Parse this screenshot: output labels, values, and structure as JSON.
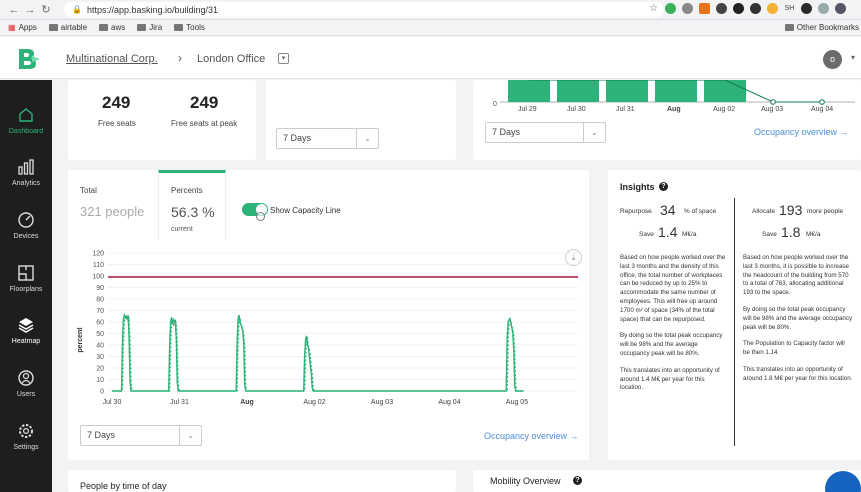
{
  "browser": {
    "url": "https://app.basking.io/building/31",
    "bookmarks": [
      "Apps",
      "airtable",
      "aws",
      "Jira",
      "Tools"
    ],
    "other_bookmarks": "Other Bookmarks",
    "ext_sh": "SH"
  },
  "header": {
    "org": "Multinational Corp.",
    "location": "London Office",
    "avatar_initial": "o"
  },
  "sidebar": {
    "items": [
      {
        "label": "Dashboard",
        "icon": "home-icon"
      },
      {
        "label": "Analytics",
        "icon": "bar-chart-icon"
      },
      {
        "label": "Devices",
        "icon": "device-icon"
      },
      {
        "label": "Floorplans",
        "icon": "floorplan-icon"
      },
      {
        "label": "Heatmap",
        "icon": "layers-icon"
      },
      {
        "label": "Users",
        "icon": "users-icon"
      },
      {
        "label": "Settings",
        "icon": "gear-icon"
      }
    ]
  },
  "seats": {
    "free_seats_value": "249",
    "free_seats_label": "Free seats",
    "free_peak_value": "249",
    "free_peak_label": "Free seats at peak"
  },
  "mid_card": {
    "period": "7 Days"
  },
  "occupancy_top": {
    "period": "7 Days",
    "link": "Occupancy overview →",
    "y_tick": "0",
    "dates": [
      "Jul 29",
      "Jul 30",
      "Jul 31",
      "Aug",
      "Aug 02",
      "Aug 03",
      "Aug 04"
    ]
  },
  "main_chart_card": {
    "total_label": "Total",
    "total_value": "321 people",
    "percents_label": "Percents",
    "percent_value": "56.3 %",
    "percent_sub": "current",
    "toggle_label": "Show Capacity Line",
    "period": "7 Days",
    "link": "Occupancy overview →"
  },
  "chart_data": {
    "type": "line",
    "ylabel": "percent",
    "ylim": [
      0,
      120
    ],
    "yticks": [
      0,
      10,
      20,
      30,
      40,
      50,
      60,
      70,
      80,
      90,
      100,
      110,
      120
    ],
    "x_labels": [
      "Jul 30",
      "Jul 31",
      "Aug",
      "Aug 02",
      "Aug 03",
      "Aug 04",
      "Aug 05"
    ],
    "capacity_line": 100,
    "series": [
      {
        "style": "solid",
        "color": "#2db37a",
        "values": [
          0,
          0,
          0,
          0,
          0,
          0,
          0,
          0,
          0,
          0,
          0,
          0,
          0,
          0,
          0,
          0,
          0,
          0,
          0,
          0,
          0,
          0,
          0,
          0,
          0,
          0,
          0,
          0,
          0,
          0,
          0,
          0,
          0,
          0,
          0,
          0,
          0,
          0,
          0,
          0,
          0,
          0,
          0,
          0,
          0,
          0,
          0,
          0,
          0,
          0,
          0,
          0,
          0,
          0,
          0,
          0,
          0,
          0,
          0,
          0,
          0,
          0,
          0,
          0,
          0,
          0,
          0,
          0,
          0,
          0,
          0,
          0,
          0,
          0,
          0,
          0,
          0,
          0,
          0,
          0,
          0,
          0,
          0,
          0,
          0,
          0,
          0,
          0,
          0,
          0,
          0,
          0,
          0,
          0,
          0,
          0,
          0,
          0,
          0,
          0,
          0,
          0,
          0,
          0,
          0,
          0,
          0,
          0,
          0,
          0,
          0,
          0,
          0,
          0,
          0,
          0,
          0,
          0,
          0,
          0,
          0,
          0,
          0,
          0
        ]
      },
      {
        "style": "dashed",
        "color": "#2db37a",
        "values": []
      }
    ]
  },
  "insights": {
    "title": "Insights",
    "left": {
      "kpi1_label": "Repurpose",
      "kpi1_value": "34",
      "kpi1_unit": "% of space",
      "kpi2_label": "Save",
      "kpi2_value": "1.4",
      "kpi2_unit": "M€/a",
      "p1": "Based on how people worked over the last 3 months and the density of this office, the total number of workplaces can be reduced by up to 25% to accommodate the same number of employees. This will free up around 1700 m² of space (34% of the total space) that can be repurposed.",
      "p2": "By doing so the total peak occupancy will be 98% and the average occupancy peak will be 80%.",
      "p3": "This translates into an opportunity of around 1.4 M€ per year for this location."
    },
    "right": {
      "kpi1_label": "Allocate",
      "kpi1_value": "193",
      "kpi1_unit": "more people",
      "kpi2_label": "Save",
      "kpi2_value": "1.8",
      "kpi2_unit": "M€/a",
      "p1": "Based on how people worked over the last 3 months, it is possible to increase the headcount of the building from 570 to a total of 763, allocating additional 193 to the space.",
      "p2": "By doing so the total peak occupancy will be 98% and the average occupancy peak will be 80%.",
      "p3": "The Population to Capacity factor will be then 1.14.",
      "p4": "This translates into an opportunity of around 1.8 M€ per year for this location."
    }
  },
  "bottom": {
    "people_by_time": "People by time of day",
    "mobility": "Mobility Overview"
  },
  "colors": {
    "accent": "#2db37a",
    "capacity": "#c0506a",
    "link": "#4a90d9"
  }
}
